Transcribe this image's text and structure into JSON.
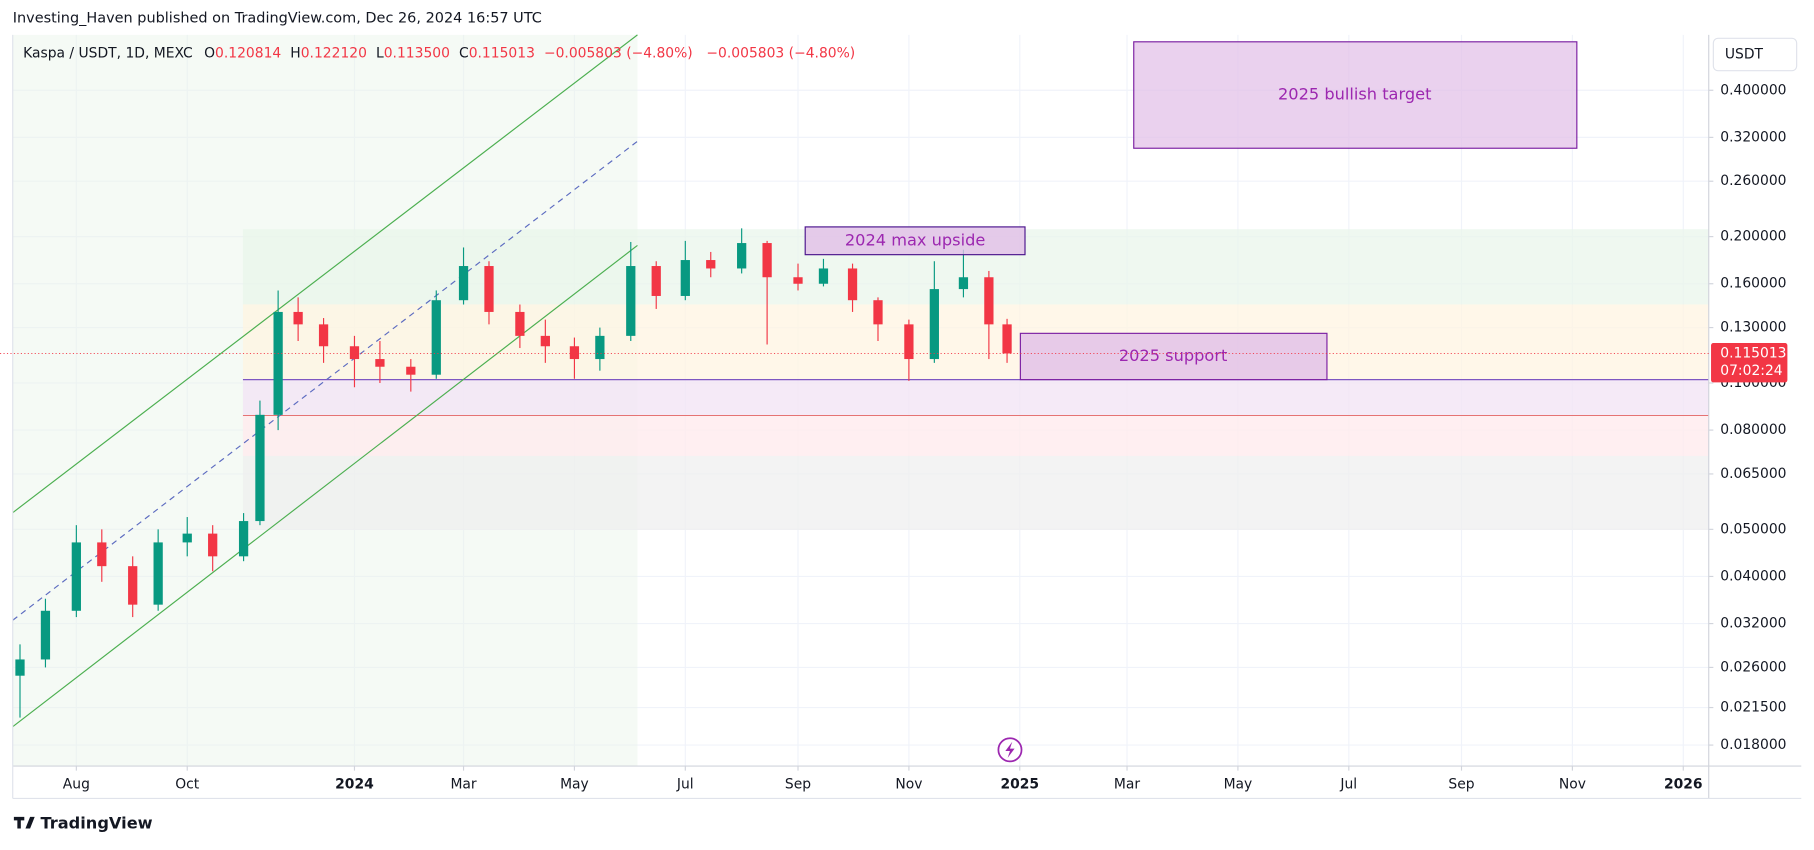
{
  "header": "Investing_Haven published on TradingView.com, Dec 26, 2024 16:57 UTC",
  "footer": "TradingView",
  "chart_data": {
    "type": "candlestick",
    "symbol": "Kaspa / USDT, 1D, MEXC",
    "ohlc_labels": [
      "O",
      "H",
      "L",
      "C"
    ],
    "ohlc": [
      "0.120814",
      "0.122120",
      "0.113500",
      "0.115013"
    ],
    "change": "−0.005803 (−4.80%)",
    "currency": "USDT",
    "last_price": {
      "value": 0.115013,
      "label": "0.115013"
    },
    "countdown": "07:02:24",
    "annotations": [
      "2025 bullish target",
      "2024 max upside",
      "2025 support"
    ],
    "log_scale": true,
    "grid": true,
    "up_color": "#089981",
    "down_color": "#f23645",
    "x": [
      "2023-07-01",
      "2023-07-15",
      "2023-08-01",
      "2023-08-15",
      "2023-09-01",
      "2023-09-15",
      "2023-10-01",
      "2023-10-15",
      "2023-11-01",
      "2023-11-10",
      "2023-11-20",
      "2023-12-01",
      "2023-12-15",
      "2024-01-01",
      "2024-01-15",
      "2024-02-01",
      "2024-02-15",
      "2024-03-01",
      "2024-03-15",
      "2024-04-01",
      "2024-04-15",
      "2024-05-01",
      "2024-05-15",
      "2024-06-01",
      "2024-06-15",
      "2024-07-01",
      "2024-07-15",
      "2024-08-01",
      "2024-08-15",
      "2024-09-01",
      "2024-09-15",
      "2024-10-01",
      "2024-10-15",
      "2024-11-01",
      "2024-11-15",
      "2024-12-01",
      "2024-12-15",
      "2024-12-25"
    ],
    "open": [
      0.025,
      0.027,
      0.034,
      0.047,
      0.042,
      0.035,
      0.047,
      0.049,
      0.044,
      0.052,
      0.086,
      0.14,
      0.132,
      0.119,
      0.112,
      0.108,
      0.104,
      0.148,
      0.174,
      0.14,
      0.125,
      0.119,
      0.112,
      0.125,
      0.174,
      0.151,
      0.179,
      0.172,
      0.194,
      0.165,
      0.16,
      0.172,
      0.148,
      0.132,
      0.112,
      0.156,
      0.165,
      0.132
    ],
    "high": [
      0.029,
      0.036,
      0.051,
      0.05,
      0.044,
      0.05,
      0.053,
      0.051,
      0.054,
      0.092,
      0.155,
      0.15,
      0.136,
      0.125,
      0.122,
      0.112,
      0.155,
      0.19,
      0.178,
      0.145,
      0.135,
      0.124,
      0.13,
      0.195,
      0.178,
      0.196,
      0.186,
      0.208,
      0.196,
      0.176,
      0.18,
      0.176,
      0.15,
      0.135,
      0.178,
      0.188,
      0.17,
      0.1355
    ],
    "low": [
      0.0205,
      0.026,
      0.033,
      0.039,
      0.033,
      0.034,
      0.044,
      0.041,
      0.043,
      0.051,
      0.08,
      0.122,
      0.11,
      0.098,
      0.1,
      0.096,
      0.102,
      0.145,
      0.132,
      0.118,
      0.11,
      0.102,
      0.106,
      0.122,
      0.142,
      0.148,
      0.165,
      0.168,
      0.12,
      0.155,
      0.158,
      0.14,
      0.122,
      0.101,
      0.11,
      0.15,
      0.112,
      0.11
    ],
    "close": [
      0.027,
      0.034,
      0.047,
      0.042,
      0.035,
      0.047,
      0.049,
      0.044,
      0.052,
      0.086,
      0.14,
      0.132,
      0.119,
      0.112,
      0.108,
      0.104,
      0.148,
      0.174,
      0.14,
      0.125,
      0.119,
      0.112,
      0.125,
      0.174,
      0.151,
      0.179,
      0.172,
      0.194,
      0.165,
      0.16,
      0.172,
      0.148,
      0.132,
      0.112,
      0.156,
      0.165,
      0.132,
      0.115013
    ],
    "xlim": [
      "2023-06-27",
      "2026-01-15"
    ],
    "xticks": [
      {
        "value": "2023-08-01",
        "label": "Aug"
      },
      {
        "value": "2023-10-01",
        "label": "Oct"
      },
      {
        "value": "2024-01-01",
        "label": "2024"
      },
      {
        "value": "2024-03-01",
        "label": "Mar"
      },
      {
        "value": "2024-05-01",
        "label": "May"
      },
      {
        "value": "2024-07-01",
        "label": "Jul"
      },
      {
        "value": "2024-09-01",
        "label": "Sep"
      },
      {
        "value": "2024-11-01",
        "label": "Nov"
      },
      {
        "value": "2025-01-01",
        "label": "2025"
      },
      {
        "value": "2025-03-01",
        "label": "Mar"
      },
      {
        "value": "2025-05-01",
        "label": "May"
      },
      {
        "value": "2025-07-01",
        "label": "Jul"
      },
      {
        "value": "2025-09-01",
        "label": "Sep"
      },
      {
        "value": "2025-11-01",
        "label": "Nov"
      },
      {
        "value": "2026-01-01",
        "label": "2026"
      }
    ],
    "ylim": [
      0.0163,
      0.52
    ],
    "yticks": [
      {
        "value": 0.018,
        "label": "0.018000"
      },
      {
        "value": 0.0215,
        "label": "0.021500"
      },
      {
        "value": 0.026,
        "label": "0.026000"
      },
      {
        "value": 0.032,
        "label": "0.032000"
      },
      {
        "value": 0.04,
        "label": "0.040000"
      },
      {
        "value": 0.05,
        "label": "0.050000"
      },
      {
        "value": 0.065,
        "label": "0.065000"
      },
      {
        "value": 0.08,
        "label": "0.080000"
      },
      {
        "value": 0.1,
        "label": "0.100000"
      },
      {
        "value": 0.13,
        "label": "0.130000"
      },
      {
        "value": 0.16,
        "label": "0.160000"
      },
      {
        "value": 0.2,
        "label": "0.200000"
      },
      {
        "value": 0.26,
        "label": "0.260000"
      },
      {
        "value": 0.32,
        "label": "0.320000"
      },
      {
        "value": 0.4,
        "label": "0.400000"
      }
    ]
  }
}
